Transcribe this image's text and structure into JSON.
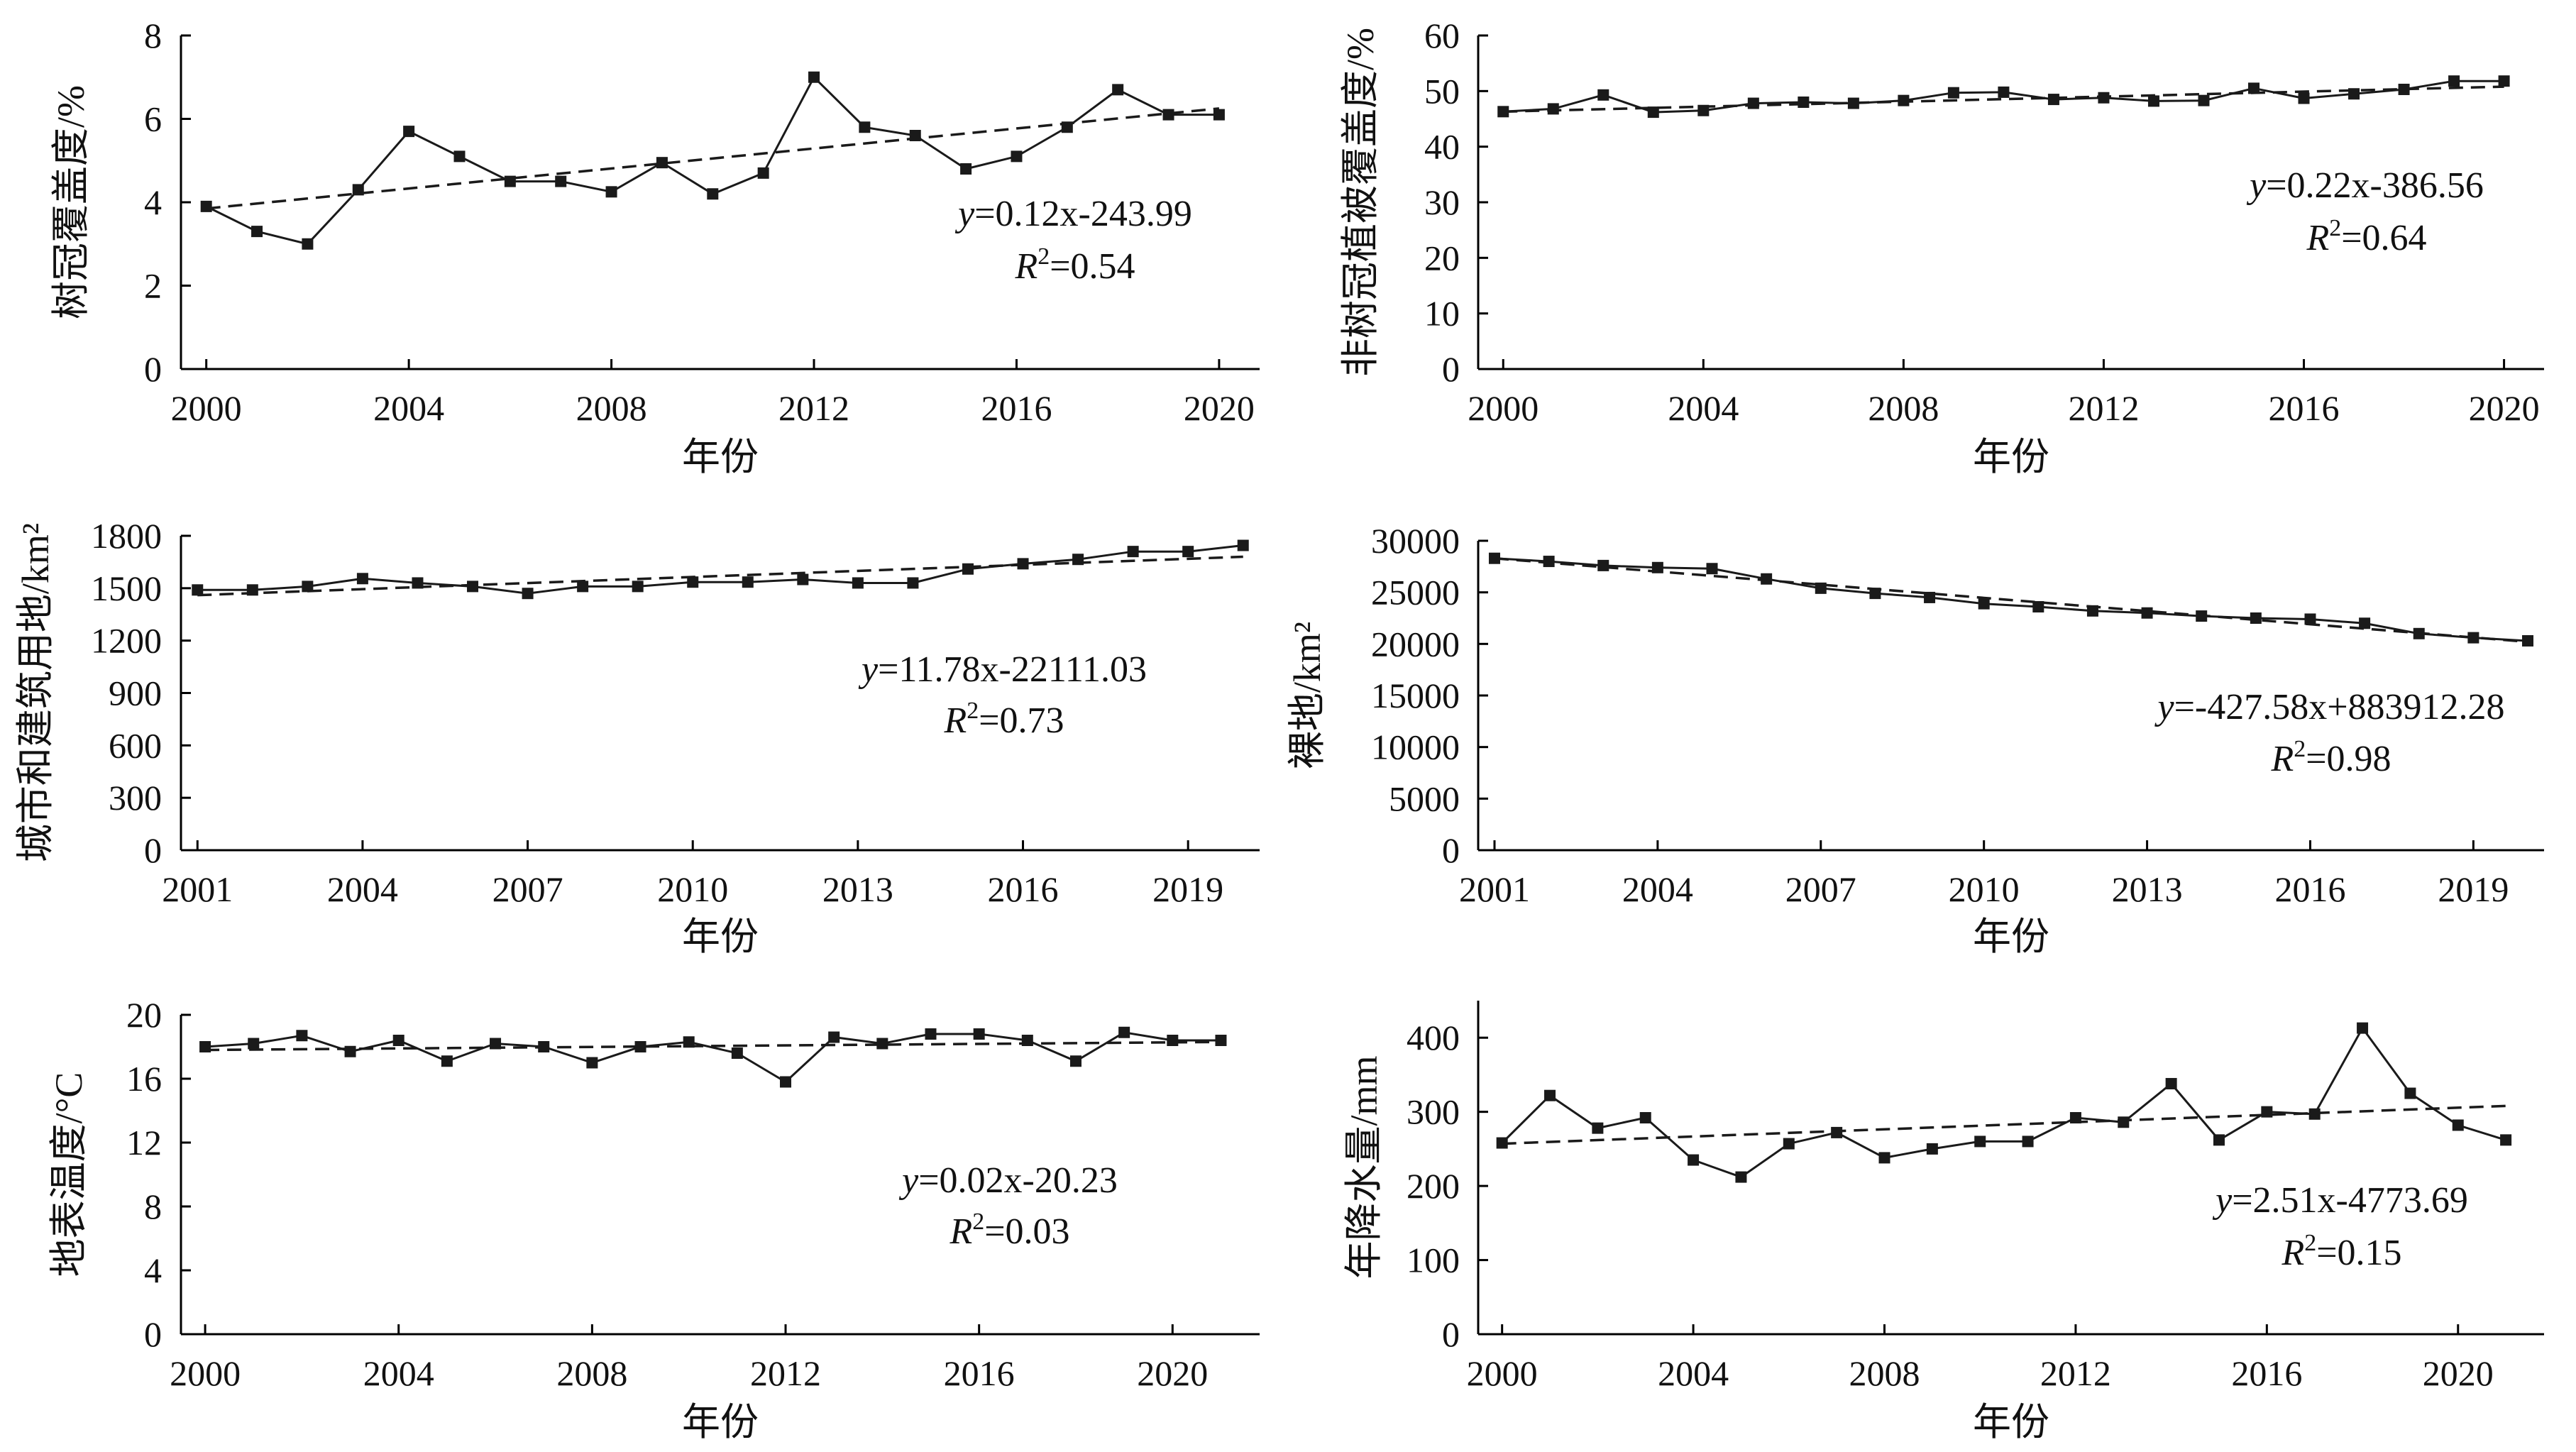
{
  "style": {
    "line_color": "#1a1a1a",
    "trend_color": "#1a1a1a",
    "background": "#ffffff"
  },
  "chart_data": [
    {
      "type": "line",
      "xlabel": "年份",
      "ylabel": "树冠覆盖度/%",
      "xlim": [
        1999.5,
        2020.8
      ],
      "ylim": [
        0,
        8
      ],
      "xticks": [
        2000,
        2004,
        2008,
        2012,
        2016,
        2020
      ],
      "yticks": [
        0,
        2,
        4,
        6,
        8
      ],
      "x": [
        2000,
        2001,
        2002,
        2003,
        2004,
        2005,
        2006,
        2007,
        2008,
        2009,
        2010,
        2011,
        2012,
        2013,
        2014,
        2015,
        2016,
        2017,
        2018,
        2019,
        2020
      ],
      "values": [
        3.9,
        3.3,
        3.0,
        4.3,
        5.7,
        5.1,
        4.5,
        4.5,
        4.25,
        4.95,
        4.2,
        4.7,
        7.0,
        5.8,
        5.6,
        4.8,
        5.1,
        5.8,
        6.7,
        6.1,
        6.1
      ],
      "trend": [
        [
          2000,
          3.85
        ],
        [
          2020,
          6.25
        ]
      ],
      "equation_y": "y",
      "equation_rest": "=0.12x-243.99",
      "r2_label": "R",
      "r2_sup": "2",
      "r2_value": "=0.54",
      "grid": false
    },
    {
      "type": "line",
      "xlabel": "年份",
      "ylabel": "非树冠植被覆盖度/%",
      "xlim": [
        1999.5,
        2020.8
      ],
      "ylim": [
        0,
        60
      ],
      "xticks": [
        2000,
        2004,
        2008,
        2012,
        2016,
        2020
      ],
      "yticks": [
        0,
        10,
        20,
        30,
        40,
        50,
        60
      ],
      "x": [
        2000,
        2001,
        2002,
        2003,
        2004,
        2005,
        2006,
        2007,
        2008,
        2009,
        2010,
        2011,
        2012,
        2013,
        2014,
        2015,
        2016,
        2017,
        2018,
        2019,
        2020
      ],
      "values": [
        46.3,
        46.8,
        49.3,
        46.2,
        46.5,
        47.8,
        48.0,
        47.8,
        48.3,
        49.7,
        49.8,
        48.5,
        48.8,
        48.2,
        48.3,
        50.5,
        48.7,
        49.5,
        50.3,
        51.8,
        51.8
      ],
      "trend": [
        [
          2000,
          46.3
        ],
        [
          2020,
          50.8
        ]
      ],
      "equation_y": "y",
      "equation_rest": "=0.22x-386.56",
      "r2_label": "R",
      "r2_sup": "2",
      "r2_value": "=0.64",
      "grid": false
    },
    {
      "type": "line",
      "xlabel": "年份",
      "ylabel": "城市和建筑用地/km²",
      "xlim": [
        2000.7,
        2020.3
      ],
      "ylim": [
        0,
        1800
      ],
      "xticks": [
        2001,
        2004,
        2007,
        2010,
        2013,
        2016,
        2019
      ],
      "yticks": [
        0,
        300,
        600,
        900,
        1200,
        1500,
        1800
      ],
      "x": [
        2001,
        2002,
        2003,
        2004,
        2005,
        2006,
        2007,
        2008,
        2009,
        2010,
        2011,
        2012,
        2013,
        2014,
        2015,
        2016,
        2017,
        2018,
        2019,
        2020
      ],
      "values": [
        1490,
        1490,
        1510,
        1555,
        1530,
        1510,
        1470,
        1510,
        1510,
        1535,
        1535,
        1550,
        1530,
        1530,
        1610,
        1640,
        1665,
        1710,
        1710,
        1745
      ],
      "trend": [
        [
          2001,
          1460
        ],
        [
          2020,
          1680
        ]
      ],
      "equation_y": "y",
      "equation_rest": "=11.78x-22111.03",
      "r2_label": "R",
      "r2_sup": "2",
      "r2_value": "=0.73",
      "grid": false
    },
    {
      "type": "line",
      "xlabel": "年份",
      "ylabel": "裸地/km²",
      "xlim": [
        2000.7,
        2020.3
      ],
      "ylim": [
        0,
        30000
      ],
      "xticks": [
        2001,
        2004,
        2007,
        2010,
        2013,
        2016,
        2019
      ],
      "yticks": [
        0,
        5000,
        10000,
        15000,
        20000,
        25000,
        30000
      ],
      "x": [
        2001,
        2002,
        2003,
        2004,
        2005,
        2006,
        2007,
        2008,
        2009,
        2010,
        2011,
        2012,
        2013,
        2014,
        2015,
        2016,
        2017,
        2018,
        2019,
        2020
      ],
      "values": [
        28300,
        28000,
        27600,
        27400,
        27300,
        26300,
        25400,
        24900,
        24500,
        23900,
        23600,
        23200,
        23000,
        22700,
        22500,
        22400,
        22000,
        21000,
        20600,
        20300
      ],
      "trend": [
        [
          2001,
          28300
        ],
        [
          2020,
          20200
        ]
      ],
      "equation_y": "y",
      "equation_rest": "=-427.58x+883912.28",
      "r2_label": "R",
      "r2_sup": "2",
      "r2_value": "=0.98",
      "grid": false
    },
    {
      "type": "line",
      "xlabel": "年份",
      "ylabel": "地表温度/°C",
      "xlim": [
        1999.5,
        2021.8
      ],
      "ylim": [
        0,
        20
      ],
      "xticks": [
        2000,
        2004,
        2008,
        2012,
        2016,
        2020
      ],
      "yticks": [
        0,
        4,
        8,
        12,
        16,
        20
      ],
      "x": [
        2000,
        2001,
        2002,
        2003,
        2004,
        2005,
        2006,
        2007,
        2008,
        2009,
        2010,
        2011,
        2012,
        2013,
        2014,
        2015,
        2016,
        2017,
        2018,
        2019,
        2020,
        2021
      ],
      "values": [
        18.0,
        18.2,
        18.7,
        17.7,
        18.4,
        17.1,
        18.2,
        18.0,
        17.0,
        18.0,
        18.3,
        17.6,
        15.8,
        18.6,
        18.2,
        18.8,
        18.8,
        18.4,
        17.1,
        18.9,
        18.4,
        18.4
      ],
      "trend": [
        [
          2000,
          17.8
        ],
        [
          2021,
          18.3
        ]
      ],
      "equation_y": "y",
      "equation_rest": "=0.02x-20.23",
      "r2_label": "R",
      "r2_sup": "2",
      "r2_value": "=0.03",
      "grid": false
    },
    {
      "type": "line",
      "xlabel": "年份",
      "ylabel": "年降水量/mm",
      "xlim": [
        1999.5,
        2021.8
      ],
      "ylim": [
        0,
        450
      ],
      "xticks": [
        2000,
        2004,
        2008,
        2012,
        2016,
        2020
      ],
      "yticks": [
        0,
        100,
        200,
        300,
        400
      ],
      "x": [
        2000,
        2001,
        2002,
        2003,
        2004,
        2005,
        2006,
        2007,
        2008,
        2009,
        2010,
        2011,
        2012,
        2013,
        2014,
        2015,
        2016,
        2017,
        2018,
        2019,
        2020,
        2021
      ],
      "values": [
        258,
        322,
        278,
        292,
        235,
        212,
        257,
        272,
        238,
        250,
        260,
        260,
        292,
        286,
        338,
        262,
        300,
        297,
        413,
        325,
        282,
        262
      ],
      "trend": [
        [
          2000,
          257
        ],
        [
          2021,
          308
        ]
      ],
      "equation_y": "y",
      "equation_rest": "=2.51x-4773.69",
      "r2_label": "R",
      "r2_sup": "2",
      "r2_value": "=0.15",
      "grid": false
    }
  ]
}
